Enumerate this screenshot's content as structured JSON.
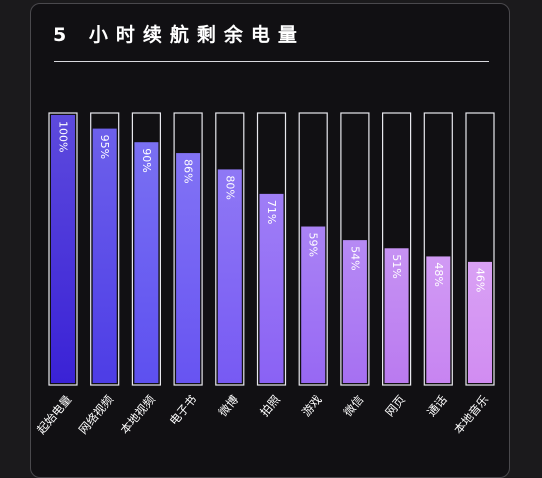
{
  "chart_data": {
    "type": "bar",
    "title": "5 小时续航剩余电量",
    "categories": [
      "起始电量",
      "网络视频",
      "本地视频",
      "电子书",
      "微博",
      "拍照",
      "游戏",
      "微信",
      "网页",
      "通话",
      "本地音乐"
    ],
    "values": [
      100,
      95,
      90,
      86,
      80,
      71,
      59,
      54,
      51,
      48,
      46
    ],
    "value_labels": [
      "100%",
      "95%",
      "90%",
      "86%",
      "80%",
      "71%",
      "59%",
      "54%",
      "51%",
      "48%",
      "46%"
    ],
    "ylim": [
      0,
      100
    ],
    "grid": false,
    "legend": "none",
    "xlabel": "",
    "ylabel": ""
  },
  "colors": {
    "background": "#111013",
    "bar_outline": "#e8e8ee",
    "gradient": [
      "#3a22d6",
      "#5a4ff0",
      "#6a55f2",
      "#8a62f4",
      "#a06cf2",
      "#c07ef0",
      "#d18cf2"
    ],
    "text": "#ffffff"
  }
}
